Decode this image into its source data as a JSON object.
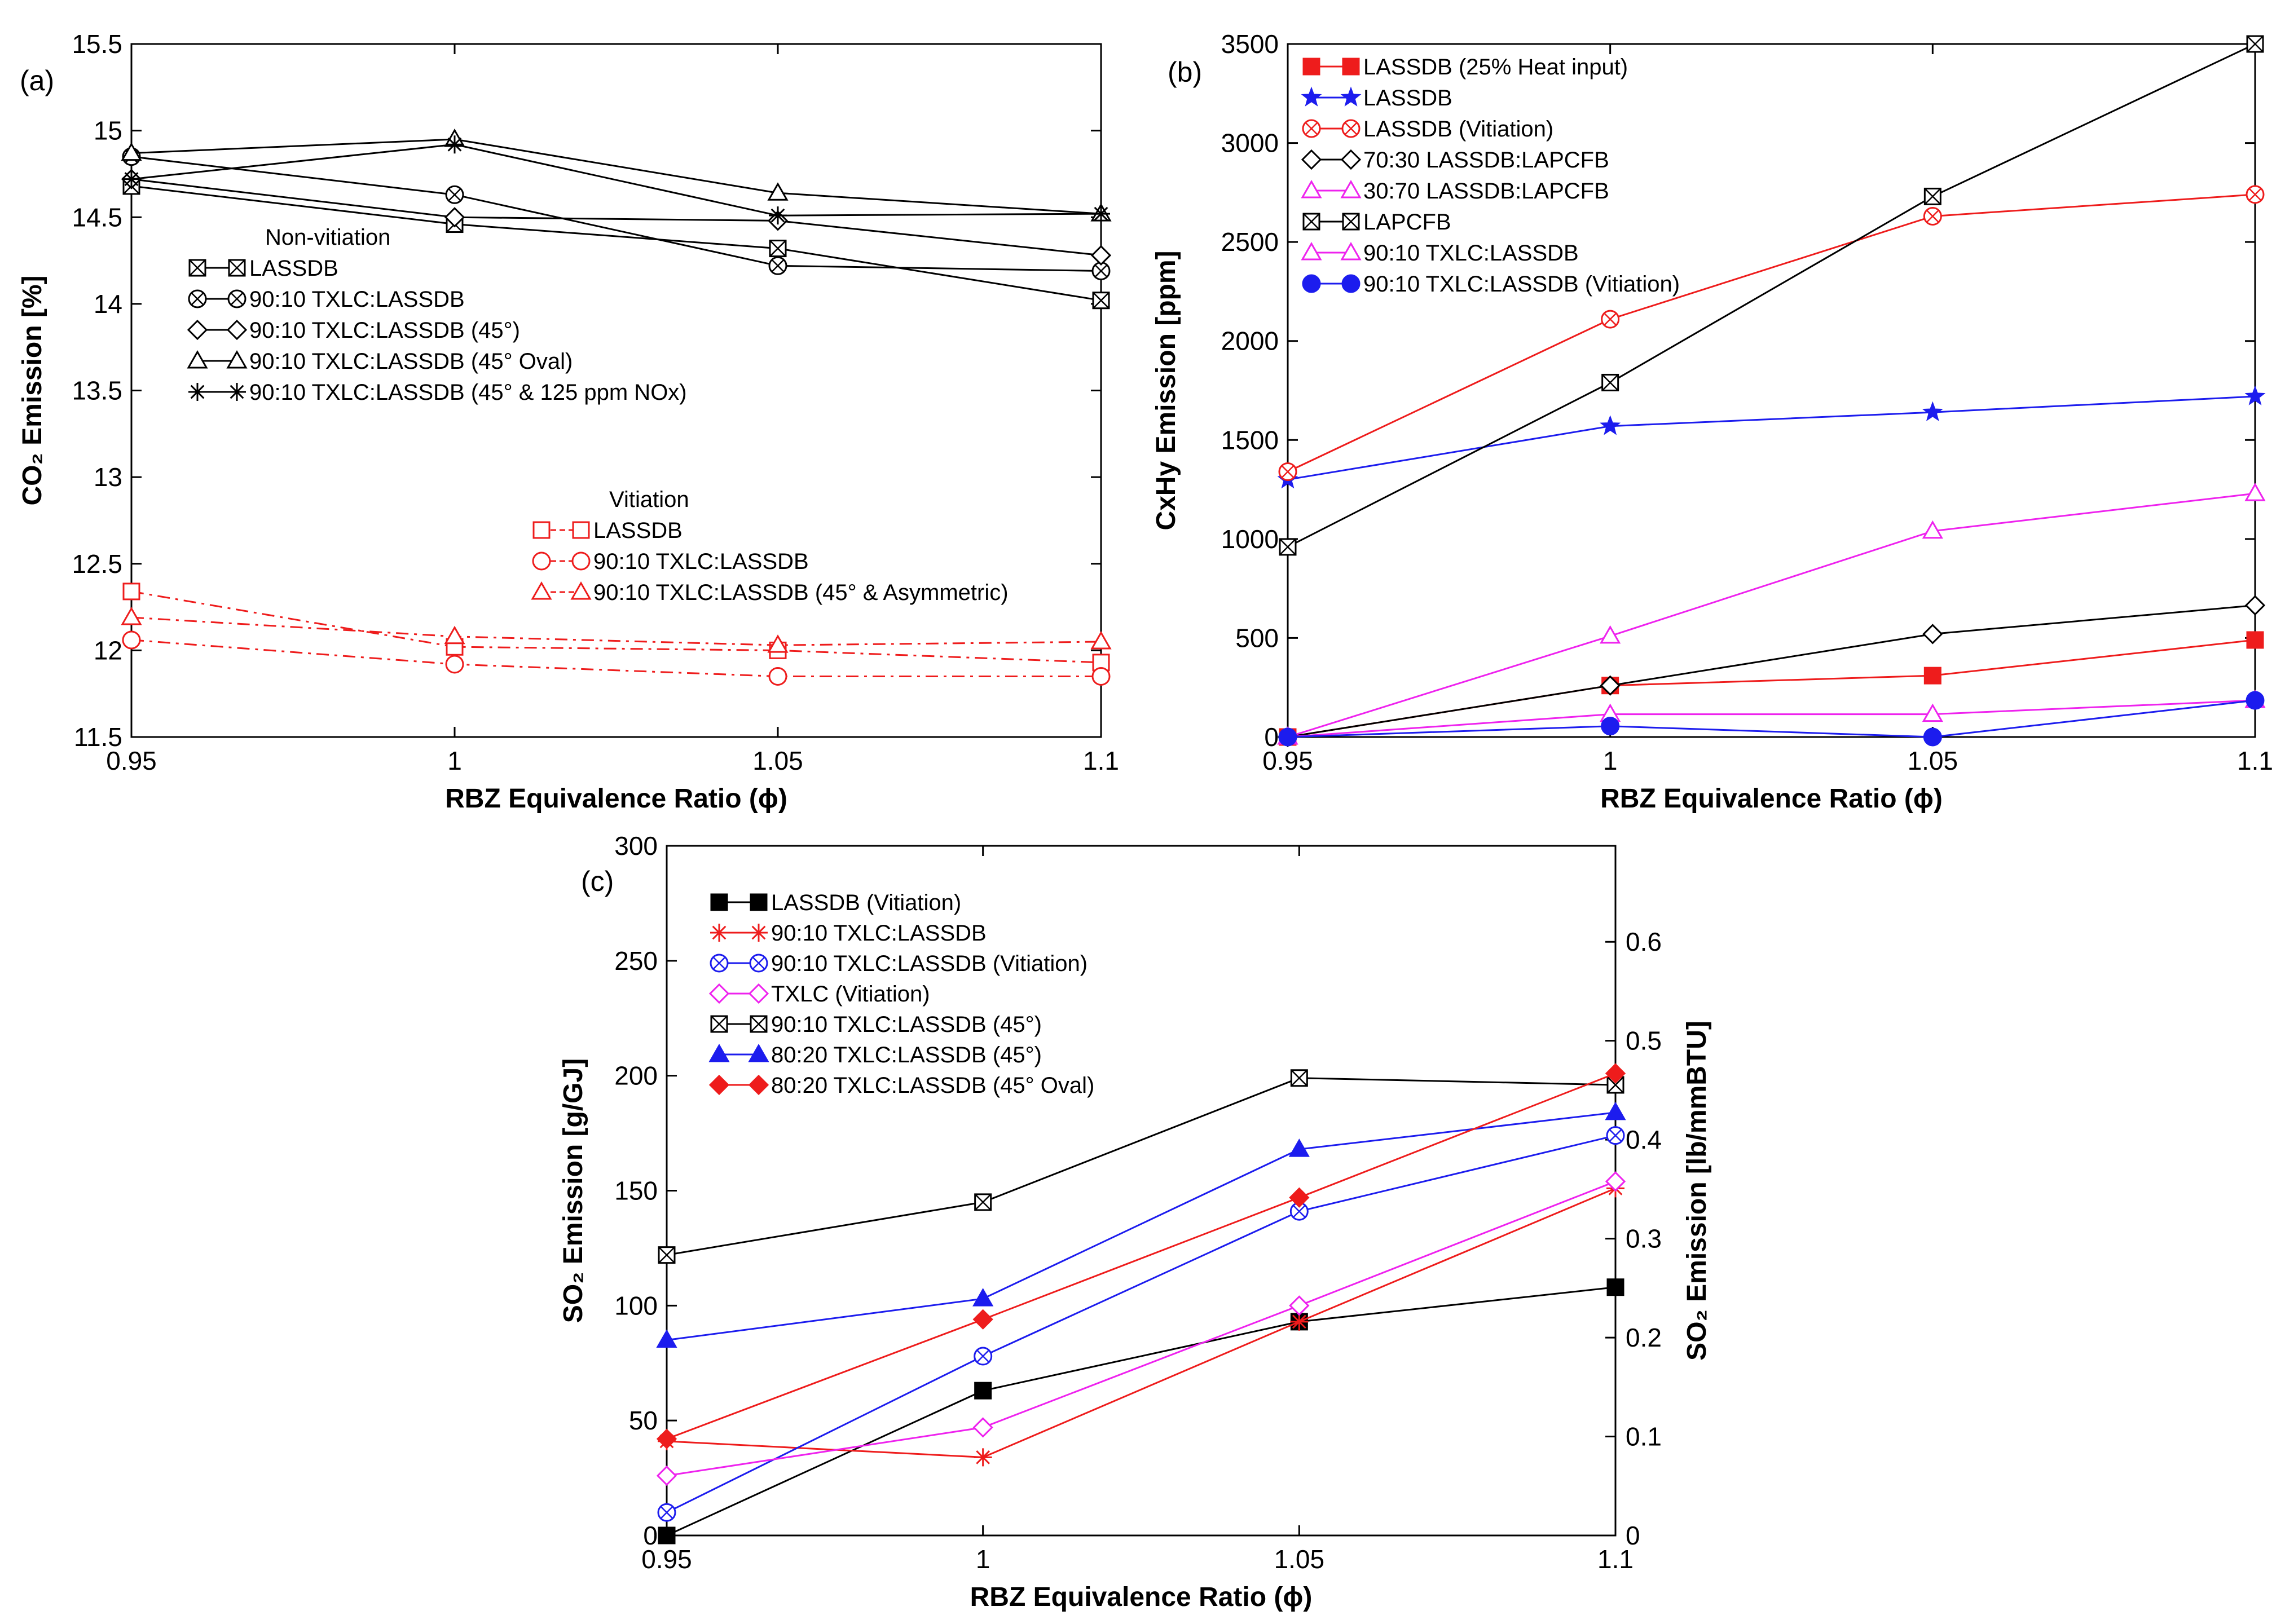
{
  "x_label": "RBZ Equivalence  Ratio (ϕ)",
  "chart_data": [
    {
      "panel": "(a)",
      "type": "line",
      "ylabel": "CO₂ Emission [%]",
      "xlabel": "RBZ Equivalence  Ratio (ϕ)",
      "x": [
        0.95,
        1,
        1.05,
        1.1
      ],
      "xticks": [
        "0.95",
        "1",
        "1.05",
        "1.1"
      ],
      "ylim": [
        11.5,
        15.5
      ],
      "yticks": [
        "11.5",
        "12",
        "12.5",
        "13",
        "13.5",
        "14",
        "14.5",
        "15",
        "15.5"
      ],
      "legend_groups": [
        {
          "title": "Non-vitiation"
        },
        {
          "title": "Vitiation",
          "color": "#ee1c1c"
        }
      ],
      "series": [
        {
          "name": "LASSDB",
          "group": 0,
          "marker": "sqx",
          "color": "#000000",
          "dash": "",
          "values": [
            14.68,
            14.46,
            14.32,
            14.02
          ]
        },
        {
          "name": "90:10 TXLC:LASSDB",
          "group": 0,
          "marker": "cx",
          "color": "#000000",
          "dash": "",
          "values": [
            14.85,
            14.63,
            14.22,
            14.19
          ]
        },
        {
          "name": "90:10 TXLC:LASSDB (45°)",
          "group": 0,
          "marker": "diamond",
          "color": "#000000",
          "dash": "",
          "values": [
            14.72,
            14.5,
            14.48,
            14.28
          ]
        },
        {
          "name": "90:10 TXLC:LASSDB (45° Oval)",
          "group": 0,
          "marker": "tri",
          "color": "#000000",
          "dash": "",
          "values": [
            14.87,
            14.95,
            14.64,
            14.52
          ]
        },
        {
          "name": "90:10 TXLC:LASSDB (45° & 125 ppm NOx)",
          "group": 0,
          "marker": "star",
          "color": "#000000",
          "dash": "",
          "values": [
            14.72,
            14.92,
            14.51,
            14.52
          ]
        },
        {
          "name": "LASSDB",
          "group": 1,
          "marker": "sq",
          "color": "#ee1c1c",
          "dash": "22,10,5,10",
          "values": [
            12.34,
            12.02,
            12.0,
            11.93
          ]
        },
        {
          "name": "90:10 TXLC:LASSDB",
          "group": 1,
          "marker": "circle",
          "color": "#ee1c1c",
          "dash": "22,10,5,10",
          "values": [
            12.06,
            11.92,
            11.85,
            11.85
          ]
        },
        {
          "name": "90:10 TXLC:LASSDB (45° & Asymmetric)",
          "group": 1,
          "marker": "tri",
          "color": "#ee1c1c",
          "dash": "22,10,5,10",
          "values": [
            12.19,
            12.08,
            12.03,
            12.05
          ]
        }
      ]
    },
    {
      "panel": "(b)",
      "type": "line",
      "ylabel": "CxHy Emission [ppm]",
      "xlabel": "RBZ Equivalence  Ratio (ϕ)",
      "x": [
        0.95,
        1,
        1.05,
        1.1
      ],
      "xticks": [
        "0.95",
        "1",
        "1.05",
        "1.1"
      ],
      "ylim": [
        0,
        3500
      ],
      "yticks": [
        "0",
        "500",
        "1000",
        "1500",
        "2000",
        "2500",
        "3000",
        "3500"
      ],
      "series": [
        {
          "name": "LASSDB (25% Heat input)",
          "marker": "sqf",
          "color": "#ee1c1c",
          "dash": "",
          "values": [
            0,
            260,
            310,
            490
          ]
        },
        {
          "name": "LASSDB",
          "marker": "starf",
          "color": "#1c1cee",
          "dash": "",
          "values": [
            1300,
            1570,
            1640,
            1720
          ]
        },
        {
          "name": "LASSDB (Vitiation)",
          "marker": "cx",
          "color": "#ee1c1c",
          "dash": "",
          "values": [
            1340,
            2110,
            2630,
            2740
          ]
        },
        {
          "name": "70:30 LASSDB:LAPCFB",
          "marker": "diamond",
          "color": "#000000",
          "dash": "",
          "values": [
            0,
            260,
            520,
            665
          ]
        },
        {
          "name": "30:70 LASSDB:LAPCFB",
          "marker": "tri",
          "color": "#ee22ee",
          "dash": "",
          "values": [
            0,
            510,
            1040,
            1230
          ]
        },
        {
          "name": "LAPCFB",
          "marker": "sqx",
          "color": "#000000",
          "dash": "",
          "values": [
            960,
            1790,
            2730,
            3500
          ]
        },
        {
          "name": "90:10 TXLC:LASSDB",
          "marker": "tri",
          "color": "#ee22ee",
          "dash": "",
          "values": [
            0,
            115,
            115,
            185
          ]
        },
        {
          "name": "90:10 TXLC:LASSDB (Vitiation)",
          "marker": "circlef",
          "color": "#1c1cee",
          "dash": "",
          "values": [
            0,
            55,
            0,
            185
          ]
        }
      ]
    },
    {
      "panel": "(c)",
      "type": "line",
      "ylabel": "SO₂ Emission [g/GJ]",
      "y2label": "SO₂ Emission [lb/mmBTU]",
      "xlabel": "RBZ Equivalence  Ratio (ϕ)",
      "x": [
        0.95,
        1,
        1.05,
        1.1
      ],
      "xticks": [
        "0.95",
        "1",
        "1.05",
        "1.1"
      ],
      "ylim": [
        0,
        300
      ],
      "yticks": [
        "0",
        "50",
        "100",
        "150",
        "200",
        "250",
        "300"
      ],
      "y2lim": [
        0,
        0.697
      ],
      "y2ticks": [
        "0",
        "0.1",
        "0.2",
        "0.3",
        "0.4",
        "0.5",
        "0.6"
      ],
      "series": [
        {
          "name": "LASSDB (Vitiation)",
          "marker": "sqf",
          "color": "#000000",
          "dash": "",
          "values": [
            0,
            63,
            93,
            108
          ]
        },
        {
          "name": "90:10 TXLC:LASSDB",
          "marker": "star",
          "color": "#ee1c1c",
          "dash": "",
          "values": [
            41,
            34,
            93,
            151
          ]
        },
        {
          "name": "90:10 TXLC:LASSDB (Vitiation)",
          "marker": "cx",
          "color": "#1c1cee",
          "dash": "",
          "values": [
            10,
            78,
            141,
            174
          ]
        },
        {
          "name": "TXLC (Vitiation)",
          "marker": "diamond",
          "color": "#ee22ee",
          "dash": "",
          "values": [
            26,
            47,
            100,
            154
          ]
        },
        {
          "name": "90:10 TXLC:LASSDB (45°)",
          "marker": "sqx",
          "color": "#000000",
          "dash": "",
          "values": [
            122,
            145,
            199,
            196
          ]
        },
        {
          "name": "80:20 TXLC:LASSDB (45°)",
          "marker": "trif",
          "color": "#1c1cee",
          "dash": "",
          "values": [
            85,
            103,
            168,
            184
          ]
        },
        {
          "name": "80:20 TXLC:LASSDB (45° Oval)",
          "marker": "diamondf",
          "color": "#ee1c1c",
          "dash": "",
          "values": [
            42,
            94,
            147,
            201
          ]
        }
      ]
    }
  ]
}
